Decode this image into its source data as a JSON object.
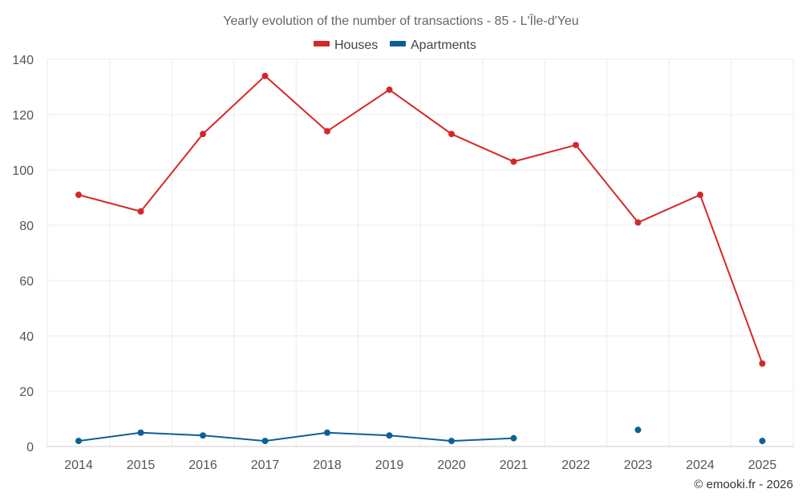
{
  "chart_data": {
    "type": "line",
    "title": "Yearly evolution of the number of transactions - 85 - L'Île-d'Yeu",
    "categories": [
      "2014",
      "2015",
      "2016",
      "2017",
      "2018",
      "2019",
      "2020",
      "2021",
      "2022",
      "2023",
      "2024",
      "2025"
    ],
    "series": [
      {
        "name": "Houses",
        "color": "#d62728",
        "values": [
          91,
          85,
          113,
          134,
          114,
          129,
          113,
          103,
          109,
          81,
          91,
          30
        ]
      },
      {
        "name": "Apartments",
        "color": "#0a6196",
        "values": [
          2,
          5,
          4,
          2,
          5,
          4,
          2,
          3,
          null,
          6,
          null,
          2
        ]
      }
    ],
    "ylim": [
      0,
      140
    ],
    "yticks": [
      0,
      20,
      40,
      60,
      80,
      100,
      120,
      140
    ],
    "xlabel": "",
    "ylabel": "",
    "grid": true,
    "legend": "top-center"
  },
  "credit": "© emooki.fr - 2026"
}
